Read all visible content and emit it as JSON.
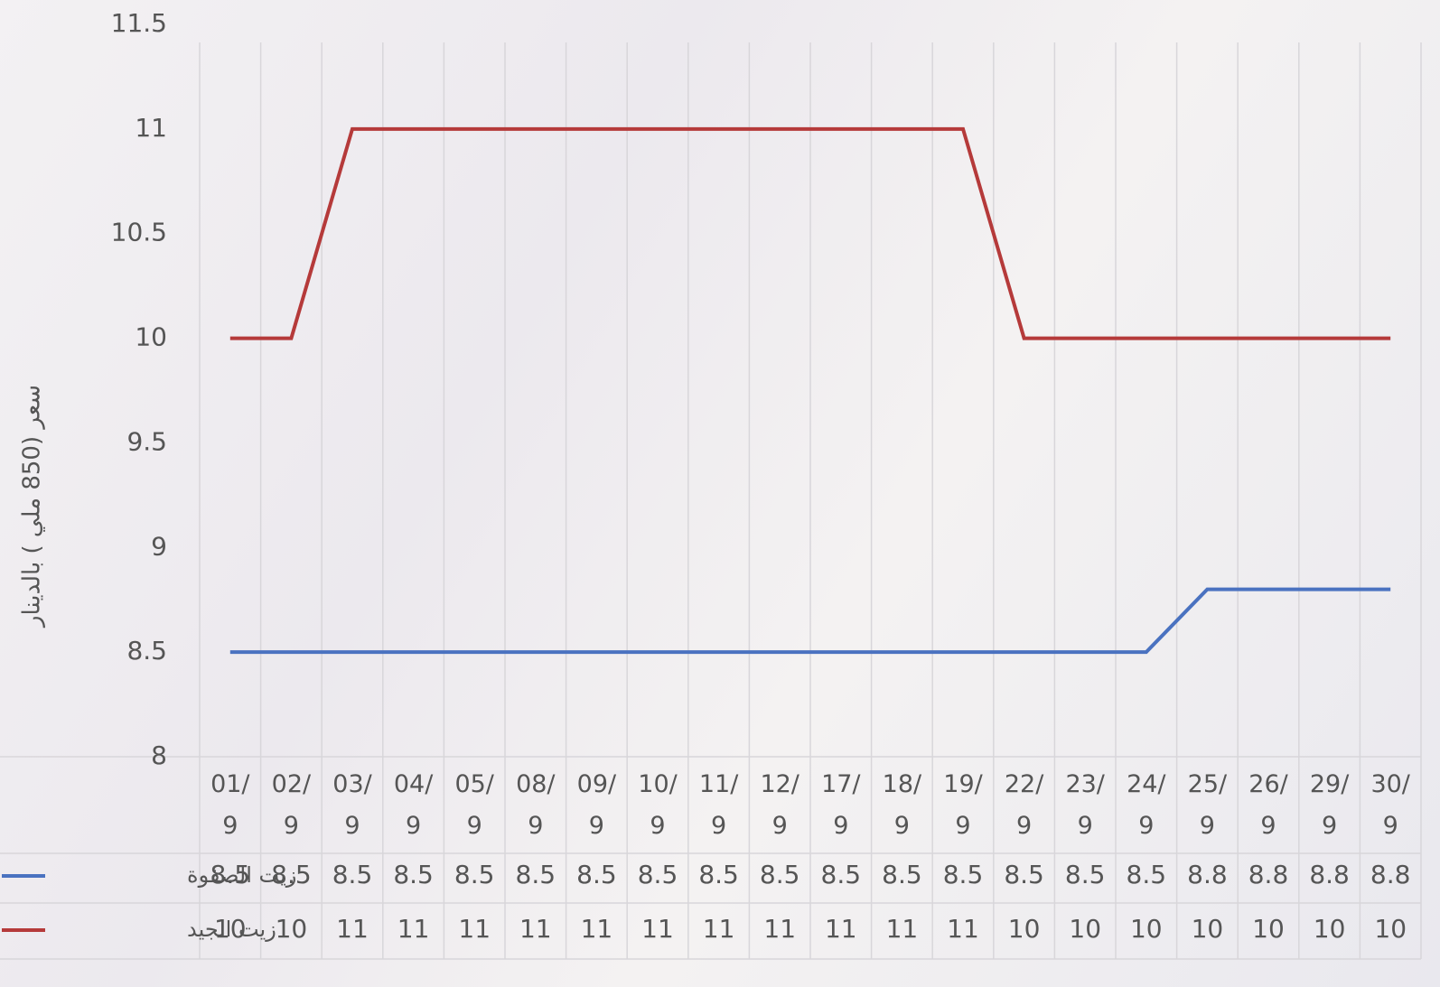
{
  "chart_data": {
    "type": "line",
    "y_label": "سعر (850 ملي ) بالدينار",
    "categories": [
      "01/\n9",
      "02/\n9",
      "03/\n9",
      "04/\n9",
      "05/\n9",
      "08/\n9",
      "09/\n9",
      "10/\n9",
      "11/\n9",
      "12/\n9",
      "17/\n9",
      "18/\n9",
      "19/\n9",
      "22/\n9",
      "23/\n9",
      "24/\n9",
      "25/\n9",
      "26/\n9",
      "29/\n9",
      "30/\n9"
    ],
    "series": [
      {
        "name": "زيت الصفوة",
        "color": "#4a72c0",
        "values": [
          8.5,
          8.5,
          8.5,
          8.5,
          8.5,
          8.5,
          8.5,
          8.5,
          8.5,
          8.5,
          8.5,
          8.5,
          8.5,
          8.5,
          8.5,
          8.5,
          8.8,
          8.8,
          8.8,
          8.8
        ]
      },
      {
        "name": "زيت الجيد",
        "color": "#b53a3a",
        "values": [
          10,
          10,
          11,
          11,
          11,
          11,
          11,
          11,
          11,
          11,
          11,
          11,
          11,
          10,
          10,
          10,
          10,
          10,
          10,
          10
        ]
      }
    ],
    "ylim": [
      8,
      11.5
    ],
    "yticks": [
      8,
      8.5,
      9,
      9.5,
      10,
      10.5,
      11,
      11.5
    ],
    "grid": false,
    "data_table": true
  }
}
